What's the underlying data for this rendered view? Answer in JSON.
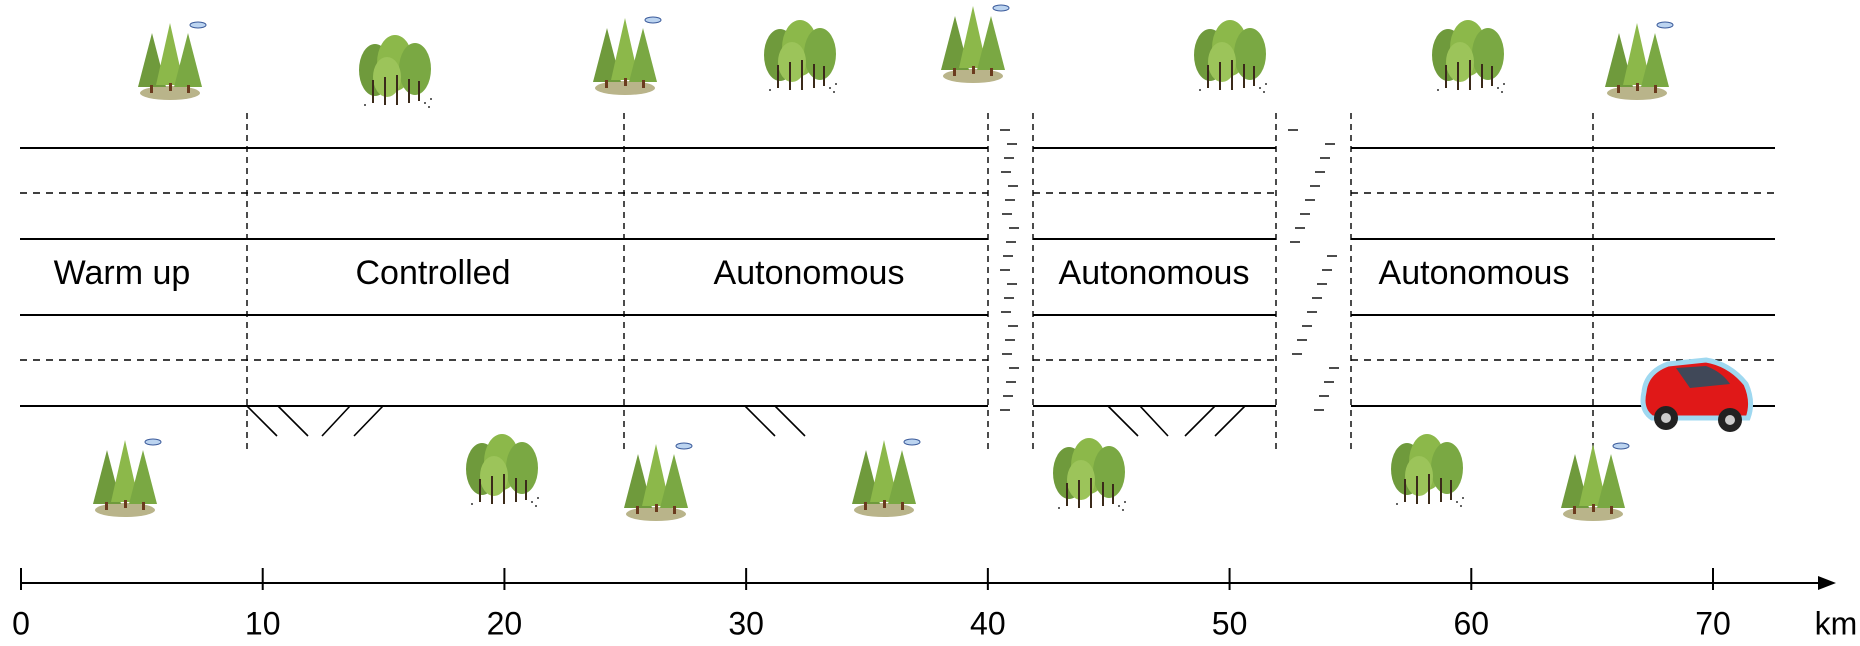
{
  "segments": [
    {
      "label": "Warm up"
    },
    {
      "label": "Controlled"
    },
    {
      "label": "Autonomous"
    },
    {
      "label": "Autonomous"
    },
    {
      "label": "Autonomous"
    }
  ],
  "axis": {
    "ticks": [
      0,
      10,
      20,
      30,
      40,
      50,
      60,
      70
    ],
    "unit": "km"
  }
}
